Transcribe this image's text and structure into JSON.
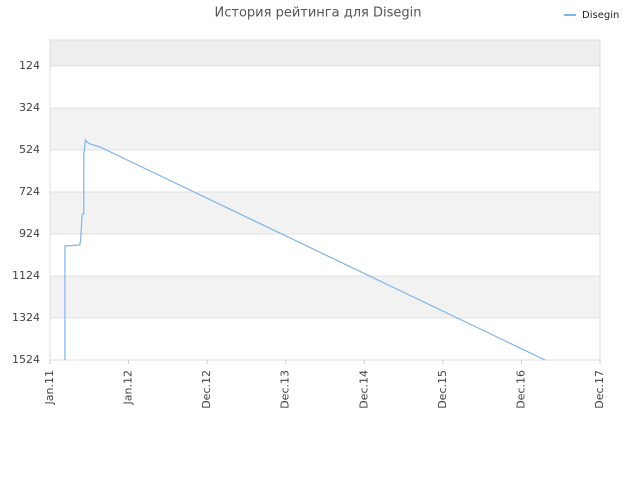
{
  "chart_data": {
    "type": "line",
    "title": "История рейтинга для Disegin",
    "x": [
      0.19,
      0.19,
      0.38,
      0.39,
      0.41,
      0.43,
      0.43,
      0.45,
      0.47,
      0.51,
      0.64,
      6.3
    ],
    "series": [
      {
        "name": "Disegin",
        "color": "#7cb5ec",
        "values": [
          1524,
          981,
          976,
          952,
          829,
          829,
          548,
          476,
          486,
          495,
          510,
          1524
        ]
      }
    ],
    "xlim": [
      0,
      7
    ],
    "xticks": [
      {
        "value": 0,
        "label": "Jan.11"
      },
      {
        "value": 1,
        "label": "Jan.12"
      },
      {
        "value": 2,
        "label": "Dec.12"
      },
      {
        "value": 3,
        "label": "Dec.13"
      },
      {
        "value": 4,
        "label": "Dec.14"
      },
      {
        "value": 5,
        "label": "Dec.15"
      },
      {
        "value": 6,
        "label": "Dec.16"
      },
      {
        "value": 7,
        "label": "Dec.17"
      }
    ],
    "ylim": [
      0,
      1524
    ],
    "y_inverted": true,
    "yticks": [
      124,
      324,
      524,
      724,
      924,
      1124,
      1324,
      1524
    ],
    "grid": true,
    "legend": "top-right"
  }
}
